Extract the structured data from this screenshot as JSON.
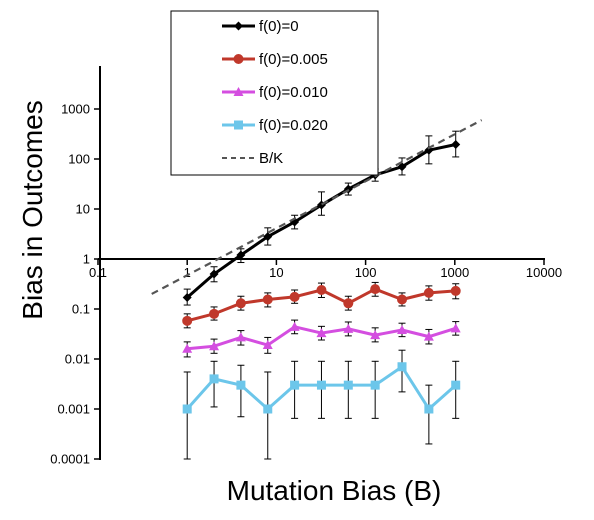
{
  "chart_data": {
    "type": "line",
    "title": "",
    "xlabel": "Mutation Bias (B)",
    "ylabel": "Bias in Outcomes",
    "xscale": "log",
    "yscale": "log",
    "xlim": [
      0.1,
      10000
    ],
    "ylim": [
      0.0001,
      10000
    ],
    "x_ticks": [
      "0.1",
      "1",
      "10",
      "100",
      "1000",
      "10000"
    ],
    "y_ticks": [
      "0.0001",
      "0.001",
      "0.01",
      "0.1",
      "1",
      "10",
      "100",
      "1000"
    ],
    "legend_position": "top-center",
    "grid": false,
    "x": [
      1,
      2,
      4,
      8,
      16,
      32,
      64,
      128,
      256,
      512,
      1024
    ],
    "series": [
      {
        "name": "f(0)=0",
        "color": "#000000",
        "marker": "diamond",
        "values": [
          0.17,
          0.5,
          1.2,
          2.8,
          5.5,
          12,
          25,
          48,
          70,
          150,
          195
        ],
        "err_low": [
          0.12,
          0.35,
          0.85,
          1.9,
          4.0,
          7.5,
          19,
          36,
          48,
          80,
          110
        ],
        "err_high": [
          0.25,
          0.7,
          1.6,
          4.2,
          7.5,
          22,
          33,
          63,
          105,
          290,
          360
        ]
      },
      {
        "name": "f(0)=0.005",
        "color": "#c0382b",
        "marker": "circle",
        "values": [
          0.058,
          0.08,
          0.13,
          0.155,
          0.175,
          0.24,
          0.13,
          0.25,
          0.155,
          0.21,
          0.23
        ],
        "err_low": [
          0.042,
          0.06,
          0.095,
          0.11,
          0.13,
          0.17,
          0.095,
          0.18,
          0.115,
          0.15,
          0.16
        ],
        "err_high": [
          0.08,
          0.11,
          0.18,
          0.21,
          0.24,
          0.33,
          0.18,
          0.34,
          0.21,
          0.29,
          0.32
        ]
      },
      {
        "name": "f(0)=0.010",
        "color": "#d44ee0",
        "marker": "triangle",
        "values": [
          0.016,
          0.018,
          0.027,
          0.019,
          0.044,
          0.033,
          0.04,
          0.03,
          0.038,
          0.028,
          0.041
        ],
        "err_low": [
          0.011,
          0.013,
          0.019,
          0.013,
          0.032,
          0.024,
          0.029,
          0.022,
          0.028,
          0.02,
          0.03
        ],
        "err_high": [
          0.022,
          0.025,
          0.037,
          0.027,
          0.06,
          0.045,
          0.055,
          0.042,
          0.052,
          0.039,
          0.056
        ]
      },
      {
        "name": "f(0)=0.020",
        "color": "#6cc6ea",
        "marker": "square",
        "values": [
          0.001,
          0.004,
          0.003,
          0.001,
          0.003,
          0.003,
          0.003,
          0.003,
          0.007,
          0.001,
          0.003
        ],
        "err_low": [
          0.0001,
          0.0011,
          0.0007,
          0.0001,
          0.00065,
          0.00065,
          0.00065,
          0.00065,
          0.0022,
          0.0002,
          0.00065
        ],
        "err_high": [
          0.0055,
          0.009,
          0.0075,
          0.0055,
          0.009,
          0.009,
          0.009,
          0.009,
          0.015,
          0.003,
          0.009
        ]
      },
      {
        "name": "B/K",
        "color": "#555555",
        "style": "dashed",
        "x": [
          0.4,
          2000
        ],
        "values": [
          0.2,
          600
        ]
      }
    ]
  }
}
